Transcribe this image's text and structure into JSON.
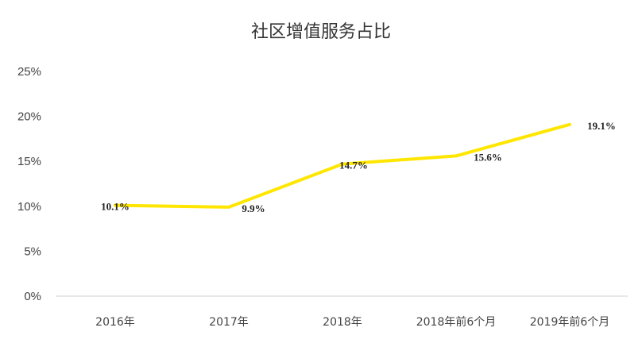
{
  "chart_data": {
    "type": "line",
    "title": "社区增值服务占比",
    "categories": [
      "2016年",
      "2017年",
      "2018年",
      "2018年前6个月",
      "2019年前6个月"
    ],
    "series": [
      {
        "values": [
          10.1,
          9.9,
          14.7,
          15.6,
          19.1
        ],
        "data_labels": [
          "10.1%",
          "9.9%",
          "14.7%",
          "15.6%",
          "19.1%"
        ]
      }
    ],
    "y_ticks": [
      "0%",
      "5%",
      "10%",
      "15%",
      "20%",
      "25%"
    ],
    "ylim": [
      0,
      25
    ],
    "grid": false,
    "line_color": "#FFE600"
  }
}
